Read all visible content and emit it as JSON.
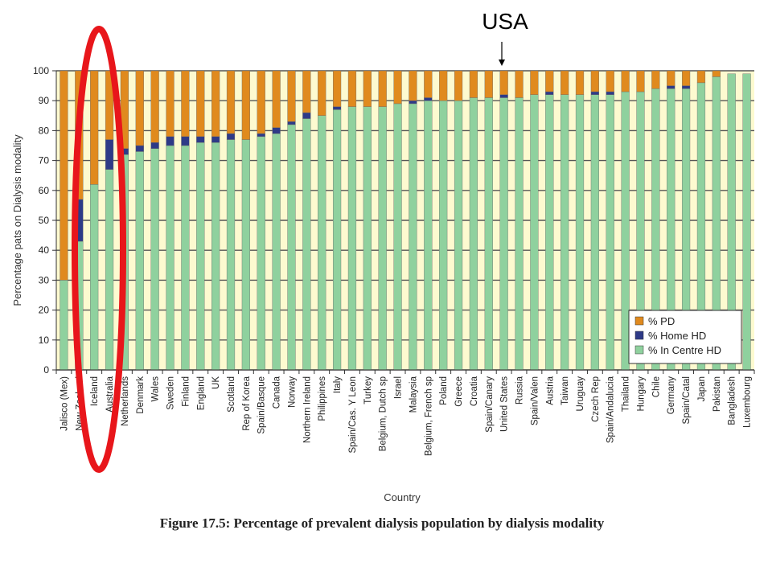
{
  "chart_data": {
    "type": "bar",
    "stacked": true,
    "caption": "Figure 17.5: Percentage of prevalent dialysis population by dialysis modality",
    "xlabel": "Country",
    "ylabel": "Percentage pats on Dialysis modality",
    "ylim": [
      0,
      100
    ],
    "yticks": [
      "0",
      "10",
      "20",
      "30",
      "40",
      "50",
      "60",
      "70",
      "80",
      "90",
      "100"
    ],
    "grid": true,
    "legend_position": "bottom-right",
    "annotation": "USA",
    "annotation_target": "United States",
    "categories": [
      "Jalisco (Mex)",
      "New Zealand",
      "Iceland",
      "Australia",
      "Netherlands",
      "Denmark",
      "Wales",
      "Sweden",
      "Finland",
      "England",
      "UK",
      "Scotland",
      "Rep of Korea",
      "Spain/Basque",
      "Canada",
      "Norway",
      "Northern Ireland",
      "Philippines",
      "Italy",
      "Spain/Cas. Y Leon",
      "Turkey",
      "Belgium, Dutch sp",
      "Israel",
      "Malaysia",
      "Belgium, French sp",
      "Poland",
      "Greece",
      "Croatia",
      "Spain/Canary",
      "United States",
      "Russia",
      "Spain/Valen",
      "Austria",
      "Taiwan",
      "Uruguay",
      "Czech Rep",
      "Spain/Andalucia",
      "Thailand",
      "Hungary",
      "Chile",
      "Germany",
      "Spain/Catal",
      "Japan",
      "Pakistan",
      "Bangladesh",
      "Luxembourg"
    ],
    "series": [
      {
        "name": "% In Centre HD",
        "color": "#8fd19e",
        "values": [
          30,
          43,
          62,
          67,
          72,
          73,
          74,
          75,
          75,
          76,
          76,
          77,
          77,
          78,
          79,
          82,
          84,
          85,
          87,
          88,
          88,
          88,
          89,
          89,
          90,
          90,
          90,
          91,
          91,
          91,
          91,
          92,
          92,
          92,
          92,
          92,
          92,
          93,
          93,
          94,
          94,
          94,
          96,
          98,
          99,
          99
        ]
      },
      {
        "name": "% Home HD",
        "color": "#2e3a87",
        "values": [
          0,
          14,
          0,
          10,
          2,
          2,
          2,
          3,
          3,
          2,
          2,
          2,
          0,
          1,
          2,
          1,
          2,
          0,
          1,
          0,
          0,
          0,
          0,
          1,
          1,
          0,
          0,
          0,
          0,
          1,
          0,
          0,
          1,
          0,
          0,
          1,
          1,
          0,
          0,
          0,
          1,
          1,
          0,
          0,
          0,
          0
        ]
      },
      {
        "name": "% PD",
        "color": "#e08a1e",
        "values": [
          70,
          43,
          38,
          23,
          26,
          25,
          24,
          22,
          22,
          22,
          22,
          21,
          23,
          21,
          19,
          17,
          14,
          15,
          12,
          12,
          12,
          12,
          11,
          10,
          9,
          10,
          10,
          9,
          9,
          8,
          9,
          8,
          7,
          8,
          8,
          7,
          7,
          7,
          7,
          6,
          5,
          5,
          4,
          2,
          0,
          0
        ]
      }
    ]
  }
}
